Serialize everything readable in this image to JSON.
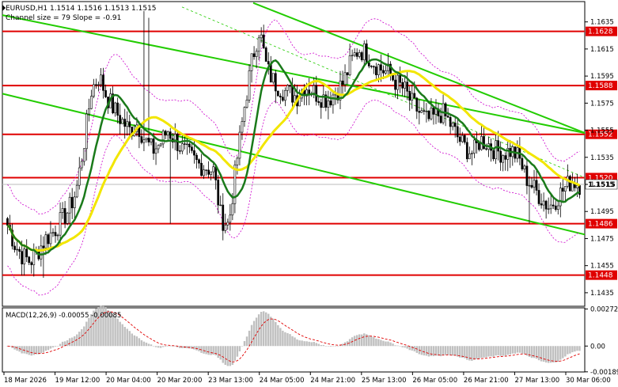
{
  "header": {
    "symbol_line": "EURUSD,H1  1.1514 1.1516 1.1513 1.1515",
    "channel_line": "Channel size = 79 Slope = -0.91"
  },
  "macd_label": "MACD(12,26,9) -0.00055 -0.00085",
  "colors": {
    "candle": "#000000",
    "level": "#e00000",
    "channel": "#22cc00",
    "ma_fast": "#1a7a1a",
    "ma_slow": "#f2e600",
    "bands": "#cc00cc",
    "macd_hist": "#c0c0c0",
    "macd_signal": "#e00000"
  },
  "chart_data": {
    "type": "candlestick",
    "symbol": "EURUSD",
    "timeframe": "H1",
    "ylim": [
      1.1425,
      1.165
    ],
    "price_ticks": [
      "1.1635",
      "1.1615",
      "1.1595",
      "1.1575",
      "1.1555",
      "1.1535",
      "1.1515",
      "1.1495",
      "1.1475",
      "1.1455",
      "1.1435"
    ],
    "time_labels": [
      "18 Mar 2026",
      "19 Mar 12:00",
      "20 Mar 04:00",
      "20 Mar 20:00",
      "23 Mar 13:00",
      "24 Mar 05:00",
      "24 Mar 21:00",
      "25 Mar 13:00",
      "26 Mar 05:00",
      "26 Mar 21:00",
      "27 Mar 13:00",
      "30 Mar 06:00"
    ],
    "levels": [
      {
        "value": 1.1628,
        "label": "1.1628"
      },
      {
        "value": 1.1588,
        "label": "1.1588"
      },
      {
        "value": 1.1552,
        "label": "1.1552"
      },
      {
        "value": 1.152,
        "label": "1.1520"
      },
      {
        "value": 1.1486,
        "label": "1.1486"
      },
      {
        "value": 1.1448,
        "label": "1.1448"
      }
    ],
    "current_price": {
      "value": 1.1515,
      "label": "1.1515"
    },
    "close_path": [
      1.1485,
      1.147,
      1.1462,
      1.1458,
      1.1466,
      1.1475,
      1.148,
      1.1488,
      1.1496,
      1.151,
      1.1545,
      1.1585,
      1.1595,
      1.158,
      1.157,
      1.1562,
      1.1555,
      1.156,
      1.1548,
      1.154,
      1.1545,
      1.1555,
      1.1548,
      1.154,
      1.1535,
      1.153,
      1.1528,
      1.1525,
      1.149,
      1.1485,
      1.153,
      1.157,
      1.1605,
      1.163,
      1.16,
      1.159,
      1.1585,
      1.1582,
      1.158,
      1.1588,
      1.1584,
      1.158,
      1.1578,
      1.1583,
      1.159,
      1.1605,
      1.1615,
      1.1612,
      1.1605,
      1.16,
      1.1597,
      1.159,
      1.1585,
      1.1575,
      1.1568,
      1.1562,
      1.1565,
      1.1568,
      1.156,
      1.155,
      1.1542,
      1.1538,
      1.1548,
      1.1545,
      1.154,
      1.1538,
      1.154,
      1.1535,
      1.152,
      1.1512,
      1.1505,
      1.1498,
      1.1505,
      1.1512,
      1.1518,
      1.1515
    ]
  },
  "macd_data": {
    "ylim": [
      -0.0019,
      0.0028
    ],
    "ticks": [
      "0.00272",
      "0.00",
      "-0.00189"
    ]
  }
}
